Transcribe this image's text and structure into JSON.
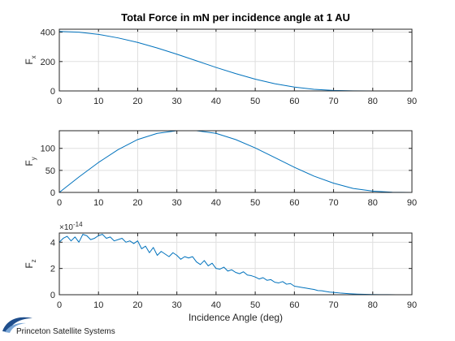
{
  "figure": {
    "title": "Total Force in mN per incidence angle at 1 AU",
    "logo_text": "Princeton Satellite Systems",
    "colors": {
      "line": "#0072BD",
      "grid": "#dfdfdf",
      "axis": "#262626"
    }
  },
  "chart_data": [
    {
      "type": "line",
      "title": "Total Force in mN per incidence angle at 1 AU",
      "ylabel_main": "F",
      "ylabel_sub": "x",
      "xlabel": "",
      "xlim": [
        0,
        90
      ],
      "ylim": [
        0,
        420
      ],
      "xticks": [
        "0",
        "10",
        "20",
        "30",
        "40",
        "50",
        "60",
        "70",
        "80",
        "90"
      ],
      "yticks": [
        {
          "v": 0,
          "t": "0"
        },
        {
          "v": 200,
          "t": "200"
        },
        {
          "v": 400,
          "t": "400"
        }
      ],
      "grid": true,
      "x": [
        0,
        5,
        10,
        15,
        20,
        25,
        30,
        35,
        40,
        45,
        50,
        55,
        60,
        65,
        70,
        75,
        80,
        85,
        90
      ],
      "y": [
        405,
        400,
        385,
        361,
        330,
        292,
        250,
        205,
        160,
        118,
        80,
        49,
        26,
        11,
        3.4,
        0.5,
        0.02,
        0,
        0
      ]
    },
    {
      "type": "line",
      "title": "",
      "ylabel_main": "F",
      "ylabel_sub": "y",
      "xlabel": "",
      "xlim": [
        0,
        90
      ],
      "ylim": [
        0,
        140
      ],
      "xticks": [
        "0",
        "10",
        "20",
        "30",
        "40",
        "50",
        "60",
        "70",
        "80",
        "90"
      ],
      "yticks": [
        {
          "v": 0,
          "t": "0"
        },
        {
          "v": 50,
          "t": "50"
        },
        {
          "v": 100,
          "t": "100"
        }
      ],
      "grid": true,
      "x": [
        0,
        5,
        10,
        15,
        20,
        25,
        30,
        35,
        40,
        45,
        50,
        55,
        60,
        65,
        70,
        75,
        80,
        85,
        90
      ],
      "y": [
        0,
        35,
        68,
        97,
        120,
        134,
        140,
        140,
        134,
        120,
        101,
        79,
        57,
        37,
        21,
        9,
        3,
        0.5,
        0
      ]
    },
    {
      "type": "line",
      "title": "",
      "ylabel_main": "F",
      "ylabel_sub": "z",
      "xlabel": "Incidence Angle (deg)",
      "exponent_label": "×10",
      "exponent_power": "-14",
      "xlim": [
        0,
        90
      ],
      "ylim": [
        0,
        4.7
      ],
      "xticks": [
        "0",
        "10",
        "20",
        "30",
        "40",
        "50",
        "60",
        "70",
        "80",
        "90"
      ],
      "yticks": [
        {
          "v": 0,
          "t": "0"
        },
        {
          "v": 2,
          "t": "2"
        },
        {
          "v": 4,
          "t": "4"
        }
      ],
      "grid": true,
      "x": [
        0,
        1,
        2,
        3,
        4,
        5,
        6,
        7,
        8,
        9,
        10,
        11,
        12,
        13,
        14,
        15,
        16,
        17,
        18,
        19,
        20,
        21,
        22,
        23,
        24,
        25,
        26,
        27,
        28,
        29,
        30,
        31,
        32,
        33,
        34,
        35,
        36,
        37,
        38,
        39,
        40,
        41,
        42,
        43,
        44,
        45,
        46,
        47,
        48,
        49,
        50,
        51,
        52,
        53,
        54,
        55,
        56,
        57,
        58,
        59,
        60,
        61,
        62,
        63,
        64,
        65,
        66,
        67,
        68,
        69,
        70,
        72,
        74,
        76,
        78,
        80,
        82,
        84,
        86,
        88,
        90
      ],
      "y": [
        4.0,
        4.3,
        4.45,
        4.1,
        4.4,
        4.0,
        4.6,
        4.5,
        4.2,
        4.3,
        4.5,
        4.6,
        4.3,
        4.4,
        4.1,
        4.2,
        4.3,
        4.0,
        4.1,
        3.9,
        4.1,
        3.5,
        3.7,
        3.2,
        3.6,
        3.0,
        3.3,
        3.1,
        2.9,
        3.2,
        3.0,
        2.7,
        2.9,
        2.8,
        2.9,
        2.5,
        2.3,
        2.6,
        2.2,
        2.4,
        2.0,
        1.95,
        2.1,
        1.8,
        1.9,
        1.7,
        1.6,
        1.75,
        1.5,
        1.45,
        1.35,
        1.2,
        1.3,
        1.1,
        1.15,
        0.95,
        0.9,
        1.0,
        0.8,
        0.85,
        0.65,
        0.6,
        0.55,
        0.5,
        0.45,
        0.4,
        0.32,
        0.3,
        0.25,
        0.2,
        0.18,
        0.12,
        0.08,
        0.05,
        0.03,
        0.015,
        0.01,
        0.005,
        0.002,
        0.0,
        0.0
      ]
    }
  ]
}
